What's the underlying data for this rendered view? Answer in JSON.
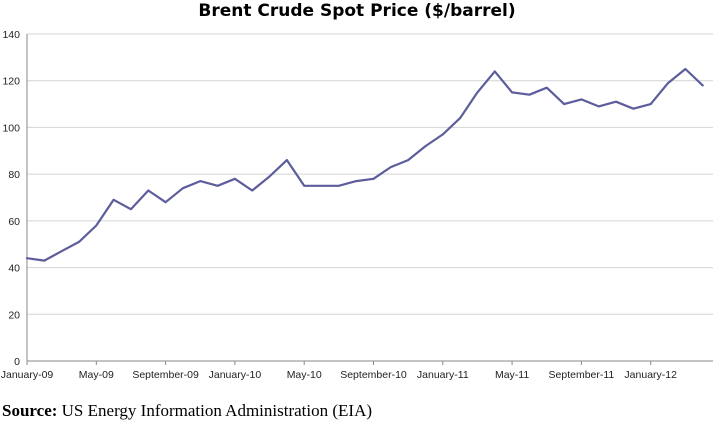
{
  "chart_data": {
    "type": "line",
    "title": "Brent Crude Spot Price ($/barrel)",
    "xlabel": "",
    "ylabel": "",
    "ylim": [
      0,
      140
    ],
    "yticks": [
      "0",
      "20",
      "40",
      "60",
      "80",
      "100",
      "120",
      "140"
    ],
    "xticks": [
      "January-09",
      "May-09",
      "September-09",
      "January-10",
      "May-10",
      "September-10",
      "January-11",
      "May-11",
      "September-11",
      "January-12"
    ],
    "grid": "horizontal",
    "legend": "none",
    "series_color": "#5d5d9c",
    "series": [
      {
        "x": [
          "2009-01",
          "2009-02",
          "2009-03",
          "2009-04",
          "2009-05",
          "2009-06",
          "2009-07",
          "2009-08",
          "2009-09",
          "2009-10",
          "2009-11",
          "2009-12",
          "2010-01",
          "2010-02",
          "2010-03",
          "2010-04",
          "2010-05",
          "2010-06",
          "2010-07",
          "2010-08",
          "2010-09",
          "2010-10",
          "2010-11",
          "2010-12",
          "2011-01",
          "2011-02",
          "2011-03",
          "2011-04",
          "2011-05",
          "2011-06",
          "2011-07",
          "2011-08",
          "2011-09",
          "2011-10",
          "2011-11",
          "2011-12",
          "2012-01",
          "2012-02",
          "2012-03",
          "2012-04"
        ],
        "values": [
          44,
          43,
          47,
          51,
          58,
          69,
          65,
          73,
          68,
          74,
          77,
          75,
          78,
          73,
          79,
          86,
          75,
          75,
          75,
          77,
          78,
          83,
          86,
          92,
          97,
          104,
          115,
          124,
          115,
          114,
          117,
          110,
          112,
          109,
          111,
          108,
          110,
          119,
          125,
          118
        ]
      }
    ]
  },
  "source": {
    "label": "Source:",
    "text": "US Energy Information Administration (EIA)"
  }
}
